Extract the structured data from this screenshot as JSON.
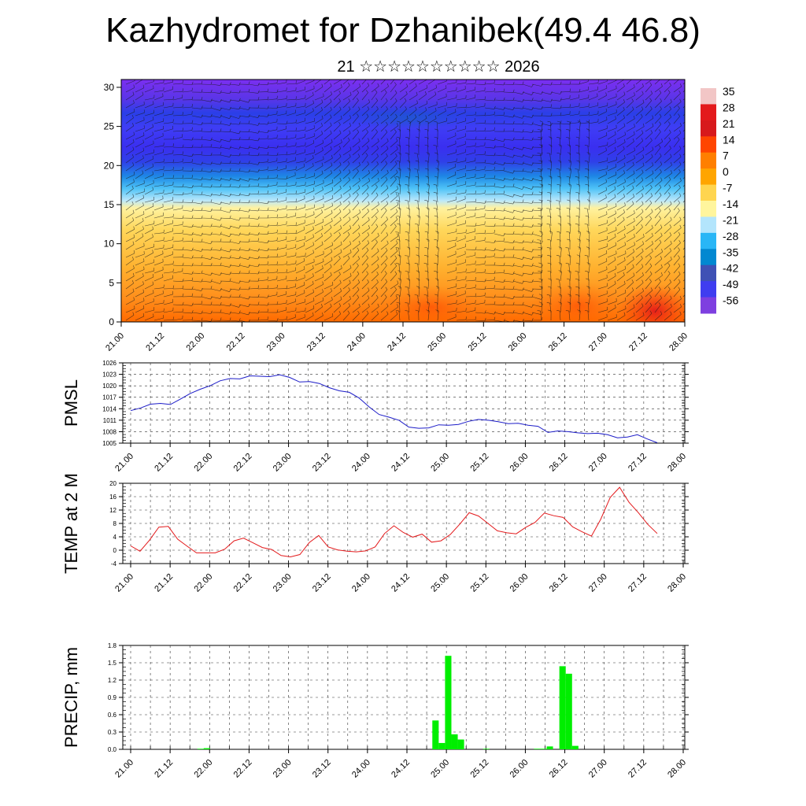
{
  "header": {
    "title": "Kazhydromet for Dzhanibek(49.4 46.8)",
    "subtitle": "21 ☆☆☆☆☆☆☆☆☆☆ 2026"
  },
  "chart_data": [
    {
      "type": "heatmap",
      "name": "vertical cross-section temperature with wind barbs",
      "title": "Kazhydromet for Dzhanibek(49.4 46.8)",
      "x_tick_labels": [
        "21.00",
        "21.12",
        "22.00",
        "22.12",
        "23.00",
        "23.12",
        "24.00",
        "24.12",
        "25.00",
        "25.12",
        "26.00",
        "26.12",
        "27.00",
        "27.12",
        "28.00"
      ],
      "y_ticks": [
        0,
        5,
        10,
        15,
        20,
        25,
        30
      ],
      "ylim": [
        0,
        31
      ],
      "colorbar_labels": [
        "35",
        "28",
        "21",
        "14",
        "7",
        "0",
        "-7",
        "-14",
        "-21",
        "-28",
        "-35",
        "-42",
        "-49",
        "-56"
      ],
      "colorbar_colors": [
        "#f2c6c6",
        "#e31a1c",
        "#d7191c",
        "#ff4500",
        "#ff7f00",
        "#ffa500",
        "#ffd54f",
        "#fff59d",
        "#b3e5fc",
        "#29b6f6",
        "#0288d1",
        "#3f51b5",
        "#3f3df0",
        "#7e3fe0"
      ]
    },
    {
      "type": "line",
      "ylabel": "PMSL",
      "color": "#1c1cc8",
      "x_tick_labels": [
        "21.00",
        "21.12",
        "22.00",
        "22.12",
        "23.00",
        "23.12",
        "24.00",
        "24.12",
        "25.00",
        "25.12",
        "26.00",
        "26.12",
        "27.00",
        "27.12",
        "28.00"
      ],
      "y_ticks": [
        "1005",
        "1008",
        "1011",
        "1014",
        "1017",
        "1020",
        "1023",
        "1026"
      ],
      "ylim": [
        1005,
        1026
      ],
      "values": [
        1013.5,
        1014.2,
        1015.2,
        1015.4,
        1015.1,
        1016.5,
        1018,
        1019.1,
        1020,
        1021.3,
        1021.9,
        1021.8,
        1022.6,
        1022.5,
        1022.4,
        1022.9,
        1022.2,
        1021,
        1021.1,
        1020.6,
        1019.5,
        1018.7,
        1018.3,
        1016.8,
        1014.5,
        1012.5,
        1011.8,
        1011,
        1009.2,
        1008.9,
        1009,
        1009.8,
        1009.7,
        1009.9,
        1010.7,
        1011.2,
        1011,
        1010.6,
        1010.1,
        1010.2,
        1009.7,
        1009.4,
        1007.8,
        1008.2,
        1008,
        1007.7,
        1007.5,
        1007.6,
        1007.2,
        1006.4,
        1006.6,
        1007.2,
        1006.1,
        1005.1
      ]
    },
    {
      "type": "line",
      "ylabel": "TEMP at 2 M",
      "color": "#e31a1c",
      "x_tick_labels": [
        "21.00",
        "21.12",
        "22.00",
        "22.12",
        "23.00",
        "23.12",
        "24.00",
        "24.12",
        "25.00",
        "25.12",
        "26.00",
        "26.12",
        "27.00",
        "27.12",
        "28.00"
      ],
      "y_ticks": [
        "-4",
        "0",
        "4",
        "8",
        "12",
        "16",
        "20"
      ],
      "ylim": [
        -4,
        20
      ],
      "values": [
        1.3,
        -0.3,
        3,
        6.9,
        7.1,
        3.3,
        1.2,
        -0.8,
        -0.8,
        -0.8,
        0.3,
        2.8,
        3.6,
        2.2,
        0.8,
        0.2,
        -1.6,
        -2,
        -1.3,
        2.3,
        4.4,
        1,
        0.1,
        -0.3,
        -0.5,
        -0.2,
        1,
        5,
        7.3,
        5.3,
        3.9,
        4.8,
        2.4,
        2.8,
        4.7,
        7.8,
        11.2,
        10.2,
        8,
        5.8,
        5.2,
        4.9,
        6.8,
        8.3,
        11.1,
        10.3,
        9.8,
        7,
        5.5,
        4.2,
        9.3,
        15.8,
        18.8,
        14.3,
        11.2,
        7.7,
        5
      ]
    },
    {
      "type": "bar",
      "ylabel": "PRECIP, mm",
      "color": "#00ee00",
      "x_tick_labels": [
        "21.00",
        "21.12",
        "22.00",
        "22.12",
        "23.00",
        "23.12",
        "24.00",
        "24.12",
        "25.00",
        "25.12",
        "26.00",
        "26.12",
        "27.00",
        "27.12",
        "28.00"
      ],
      "y_ticks": [
        "0.0",
        "0.3",
        "0.6",
        "0.9",
        "1.2",
        "1.5",
        "1.8"
      ],
      "ylim": [
        0,
        1.8
      ],
      "values": [
        0,
        0,
        0,
        0,
        0,
        0,
        0,
        0,
        0,
        0,
        0,
        0.01,
        0.02,
        0,
        0,
        0,
        0,
        0,
        0,
        0,
        0,
        0,
        0,
        0,
        0,
        0,
        0,
        0,
        0,
        0,
        0,
        0,
        0,
        0,
        0,
        0,
        0,
        0,
        0,
        0,
        0,
        0,
        0,
        0,
        0,
        0,
        0,
        0,
        0.5,
        0.11,
        1.62,
        0.26,
        0.17,
        0,
        0,
        0,
        0.01,
        0,
        0,
        0,
        0,
        0,
        0,
        0,
        0.01,
        0.01,
        0.05,
        0,
        1.44,
        1.31,
        0.06,
        0,
        0,
        0,
        0,
        0,
        0,
        0,
        0,
        0,
        0,
        0,
        0,
        0,
        0,
        0,
        0,
        0
      ]
    }
  ]
}
